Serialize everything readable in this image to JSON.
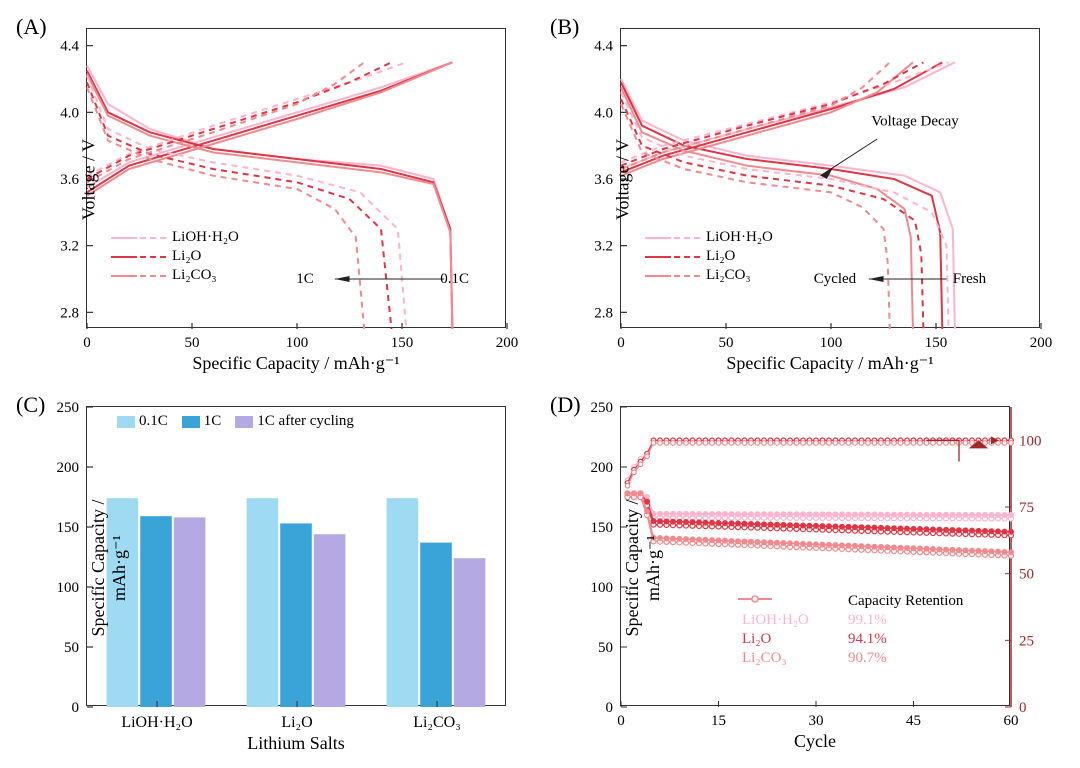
{
  "colors": {
    "lioh": "#ffb3cc",
    "li2o": "#e03545",
    "li2co3": "#f18a8e",
    "axis": "#333333",
    "text": "#222222",
    "bar_01c": "#9edbf2",
    "bar_1c": "#3aa3d8",
    "bar_1c_cycled": "#b5a9e3",
    "ce_axis": "#a0282a",
    "grid": "#ffffff"
  },
  "panelA": {
    "label": "(A)",
    "type": "line",
    "xlabel": "Specific Capacity / mAh·g⁻¹",
    "ylabel": "Voltage / V",
    "xlim": [
      0,
      200
    ],
    "ylim": [
      2.7,
      4.5
    ],
    "xticks": [
      0,
      50,
      100,
      150,
      200
    ],
    "yticks": [
      2.8,
      3.2,
      3.6,
      4.0,
      4.4
    ],
    "legend_items": [
      {
        "name": "LiOH·H₂O",
        "color_key": "lioh"
      },
      {
        "name": "Li₂O",
        "color_key": "li2o"
      },
      {
        "name": "Li₂CO₃",
        "color_key": "li2co3"
      }
    ],
    "arrow_label_left": "1C",
    "arrow_label_right": "0.1C",
    "curves": {
      "lioh_01c_dis": [
        [
          0,
          4.28
        ],
        [
          10,
          4.05
        ],
        [
          30,
          3.9
        ],
        [
          60,
          3.78
        ],
        [
          100,
          3.72
        ],
        [
          140,
          3.68
        ],
        [
          165,
          3.6
        ],
        [
          173,
          3.3
        ],
        [
          174,
          2.7
        ]
      ],
      "lioh_01c_chg": [
        [
          0,
          3.55
        ],
        [
          20,
          3.7
        ],
        [
          60,
          3.85
        ],
        [
          100,
          4.0
        ],
        [
          140,
          4.15
        ],
        [
          174,
          4.3
        ]
      ],
      "li2o_01c_dis": [
        [
          0,
          4.25
        ],
        [
          10,
          4.0
        ],
        [
          30,
          3.88
        ],
        [
          60,
          3.78
        ],
        [
          100,
          3.72
        ],
        [
          140,
          3.66
        ],
        [
          165,
          3.58
        ],
        [
          173,
          3.3
        ],
        [
          174,
          2.7
        ]
      ],
      "li2o_01c_chg": [
        [
          0,
          3.52
        ],
        [
          20,
          3.68
        ],
        [
          60,
          3.83
        ],
        [
          100,
          3.98
        ],
        [
          140,
          4.13
        ],
        [
          174,
          4.3
        ]
      ],
      "li2co3_01c_dis": [
        [
          0,
          4.23
        ],
        [
          10,
          3.98
        ],
        [
          30,
          3.86
        ],
        [
          60,
          3.76
        ],
        [
          100,
          3.7
        ],
        [
          140,
          3.64
        ],
        [
          165,
          3.57
        ],
        [
          173,
          3.28
        ],
        [
          174,
          2.7
        ]
      ],
      "li2co3_01c_chg": [
        [
          0,
          3.5
        ],
        [
          20,
          3.66
        ],
        [
          60,
          3.81
        ],
        [
          100,
          3.96
        ],
        [
          140,
          4.12
        ],
        [
          174,
          4.3
        ]
      ],
      "lioh_1c_dis": [
        [
          0,
          4.22
        ],
        [
          10,
          3.9
        ],
        [
          30,
          3.78
        ],
        [
          60,
          3.7
        ],
        [
          100,
          3.62
        ],
        [
          130,
          3.52
        ],
        [
          148,
          3.3
        ],
        [
          152,
          2.7
        ]
      ],
      "lioh_1c_chg": [
        [
          0,
          3.62
        ],
        [
          20,
          3.75
        ],
        [
          60,
          3.92
        ],
        [
          100,
          4.08
        ],
        [
          130,
          4.2
        ],
        [
          152,
          4.3
        ]
      ],
      "li2o_1c_dis": [
        [
          0,
          4.18
        ],
        [
          10,
          3.86
        ],
        [
          30,
          3.75
        ],
        [
          60,
          3.66
        ],
        [
          100,
          3.58
        ],
        [
          125,
          3.48
        ],
        [
          140,
          3.3
        ],
        [
          145,
          2.7
        ]
      ],
      "li2o_1c_chg": [
        [
          0,
          3.6
        ],
        [
          20,
          3.74
        ],
        [
          60,
          3.9
        ],
        [
          100,
          4.06
        ],
        [
          125,
          4.18
        ],
        [
          145,
          4.3
        ]
      ],
      "li2co3_1c_dis": [
        [
          0,
          4.15
        ],
        [
          10,
          3.83
        ],
        [
          30,
          3.72
        ],
        [
          60,
          3.62
        ],
        [
          100,
          3.54
        ],
        [
          118,
          3.42
        ],
        [
          128,
          3.25
        ],
        [
          132,
          2.7
        ]
      ],
      "li2co3_1c_chg": [
        [
          0,
          3.58
        ],
        [
          20,
          3.72
        ],
        [
          60,
          3.88
        ],
        [
          100,
          4.05
        ],
        [
          118,
          4.17
        ],
        [
          132,
          4.3
        ]
      ]
    }
  },
  "panelB": {
    "label": "(B)",
    "type": "line",
    "xlabel": "Specific Capacity / mAh·g⁻¹",
    "ylabel": "Voltage / V",
    "xlim": [
      0,
      200
    ],
    "ylim": [
      2.7,
      4.5
    ],
    "xticks": [
      0,
      50,
      100,
      150,
      200
    ],
    "yticks": [
      2.8,
      3.2,
      3.6,
      4.0,
      4.4
    ],
    "legend_items": [
      {
        "name": "LiOH·H₂O",
        "color_key": "lioh"
      },
      {
        "name": "Li₂O",
        "color_key": "li2o"
      },
      {
        "name": "Li₂CO₃",
        "color_key": "li2co3"
      }
    ],
    "annotation_vd": "Voltage Decay",
    "arrow_label_left": "Cycled",
    "arrow_label_right": "Fresh",
    "curves": {
      "lioh_fresh_dis": [
        [
          0,
          4.2
        ],
        [
          10,
          3.95
        ],
        [
          30,
          3.83
        ],
        [
          60,
          3.74
        ],
        [
          100,
          3.68
        ],
        [
          135,
          3.62
        ],
        [
          152,
          3.52
        ],
        [
          158,
          3.3
        ],
        [
          159,
          2.7
        ]
      ],
      "lioh_fresh_chg": [
        [
          0,
          3.66
        ],
        [
          20,
          3.76
        ],
        [
          60,
          3.9
        ],
        [
          100,
          4.03
        ],
        [
          135,
          4.15
        ],
        [
          159,
          4.3
        ]
      ],
      "li2o_fresh_dis": [
        [
          0,
          4.18
        ],
        [
          10,
          3.92
        ],
        [
          30,
          3.8
        ],
        [
          60,
          3.72
        ],
        [
          100,
          3.66
        ],
        [
          130,
          3.6
        ],
        [
          148,
          3.5
        ],
        [
          152,
          3.28
        ],
        [
          153,
          2.7
        ]
      ],
      "li2o_fresh_chg": [
        [
          0,
          3.64
        ],
        [
          20,
          3.74
        ],
        [
          60,
          3.88
        ],
        [
          100,
          4.02
        ],
        [
          130,
          4.14
        ],
        [
          153,
          4.3
        ]
      ],
      "li2co3_fresh_dis": [
        [
          0,
          4.15
        ],
        [
          10,
          3.88
        ],
        [
          30,
          3.77
        ],
        [
          60,
          3.68
        ],
        [
          100,
          3.62
        ],
        [
          122,
          3.54
        ],
        [
          135,
          3.42
        ],
        [
          138,
          3.25
        ],
        [
          139,
          2.7
        ]
      ],
      "li2co3_fresh_chg": [
        [
          0,
          3.62
        ],
        [
          20,
          3.72
        ],
        [
          60,
          3.86
        ],
        [
          100,
          4.0
        ],
        [
          122,
          4.12
        ],
        [
          139,
          4.3
        ]
      ],
      "lioh_cyc_dis": [
        [
          0,
          4.12
        ],
        [
          10,
          3.85
        ],
        [
          30,
          3.74
        ],
        [
          60,
          3.66
        ],
        [
          100,
          3.6
        ],
        [
          130,
          3.52
        ],
        [
          148,
          3.4
        ],
        [
          155,
          3.2
        ],
        [
          156,
          2.7
        ]
      ],
      "lioh_cyc_chg": [
        [
          0,
          3.7
        ],
        [
          20,
          3.8
        ],
        [
          60,
          3.93
        ],
        [
          100,
          4.06
        ],
        [
          130,
          4.18
        ],
        [
          156,
          4.3
        ]
      ],
      "li2o_cyc_dis": [
        [
          0,
          4.08
        ],
        [
          10,
          3.8
        ],
        [
          30,
          3.7
        ],
        [
          60,
          3.62
        ],
        [
          100,
          3.56
        ],
        [
          125,
          3.48
        ],
        [
          140,
          3.35
        ],
        [
          143,
          3.15
        ],
        [
          144,
          2.7
        ]
      ],
      "li2o_cyc_chg": [
        [
          0,
          3.68
        ],
        [
          20,
          3.78
        ],
        [
          60,
          3.92
        ],
        [
          100,
          4.05
        ],
        [
          125,
          4.17
        ],
        [
          144,
          4.3
        ]
      ],
      "li2co3_cyc_dis": [
        [
          0,
          4.05
        ],
        [
          10,
          3.76
        ],
        [
          30,
          3.66
        ],
        [
          60,
          3.58
        ],
        [
          100,
          3.52
        ],
        [
          115,
          3.43
        ],
        [
          125,
          3.3
        ],
        [
          127,
          3.1
        ],
        [
          128,
          2.7
        ]
      ],
      "li2co3_cyc_chg": [
        [
          0,
          3.66
        ],
        [
          20,
          3.76
        ],
        [
          60,
          3.9
        ],
        [
          100,
          4.04
        ],
        [
          115,
          4.15
        ],
        [
          128,
          4.3
        ]
      ]
    }
  },
  "panelC": {
    "label": "(C)",
    "type": "bar",
    "xlabel": "Lithium Salts",
    "ylabel": "Specific Capacity / mAh·g⁻¹",
    "ylim": [
      0,
      250
    ],
    "yticks": [
      0,
      50,
      100,
      150,
      200,
      250
    ],
    "categories": [
      "LiOH·H₂O",
      "Li₂O",
      "Li₂CO₃"
    ],
    "series": [
      {
        "name": "0.1C",
        "color_key": "bar_01c",
        "values": [
          174,
          174,
          174
        ]
      },
      {
        "name": "1C",
        "color_key": "bar_1c",
        "values": [
          159,
          153,
          137
        ]
      },
      {
        "name": "1C after cycling",
        "color_key": "bar_1c_cycled",
        "values": [
          158,
          144,
          124
        ]
      }
    ],
    "bar_group_width": 0.72
  },
  "panelD": {
    "label": "(D)",
    "type": "line-dual",
    "xlabel": "Cycle",
    "ylabel": "Specific Capacity / mAh·g⁻¹",
    "y2label": "Coulombic Efficiency / %",
    "xlim": [
      0,
      60
    ],
    "ylim": [
      0,
      250
    ],
    "y2lim": [
      0,
      112.5
    ],
    "xticks": [
      0,
      15,
      30,
      45,
      60
    ],
    "yticks": [
      0,
      50,
      100,
      150,
      200,
      250
    ],
    "y2ticks": [
      0,
      25,
      50,
      75,
      100
    ],
    "legend_items": [
      {
        "name": "LiOH·H₂O",
        "color_key": "lioh",
        "retention": "99.1%"
      },
      {
        "name": "Li₂O",
        "color_key": "li2o",
        "retention": "94.1%"
      },
      {
        "name": "Li₂CO₃",
        "color_key": "li2co3",
        "retention": "90.7%"
      }
    ],
    "retention_title": "Capacity Retention",
    "capacity_series": {
      "lioh": {
        "start": [
          175,
          175,
          175,
          172,
          158
        ],
        "end": 157
      },
      "li2o": {
        "start": [
          175,
          175,
          175,
          168,
          152
        ],
        "end": 143
      },
      "li2co3": {
        "start": [
          175,
          175,
          175,
          160,
          138
        ],
        "end": 126
      }
    },
    "ce_series": {
      "lioh": {
        "start": [
          85,
          90,
          93,
          95,
          100
        ],
        "steady": 100
      },
      "li2o": {
        "start": [
          84,
          89,
          92,
          95,
          100
        ],
        "steady": 100
      },
      "li2co3": {
        "start": [
          83,
          88,
          91,
          94,
          99
        ],
        "steady": 99
      }
    }
  }
}
